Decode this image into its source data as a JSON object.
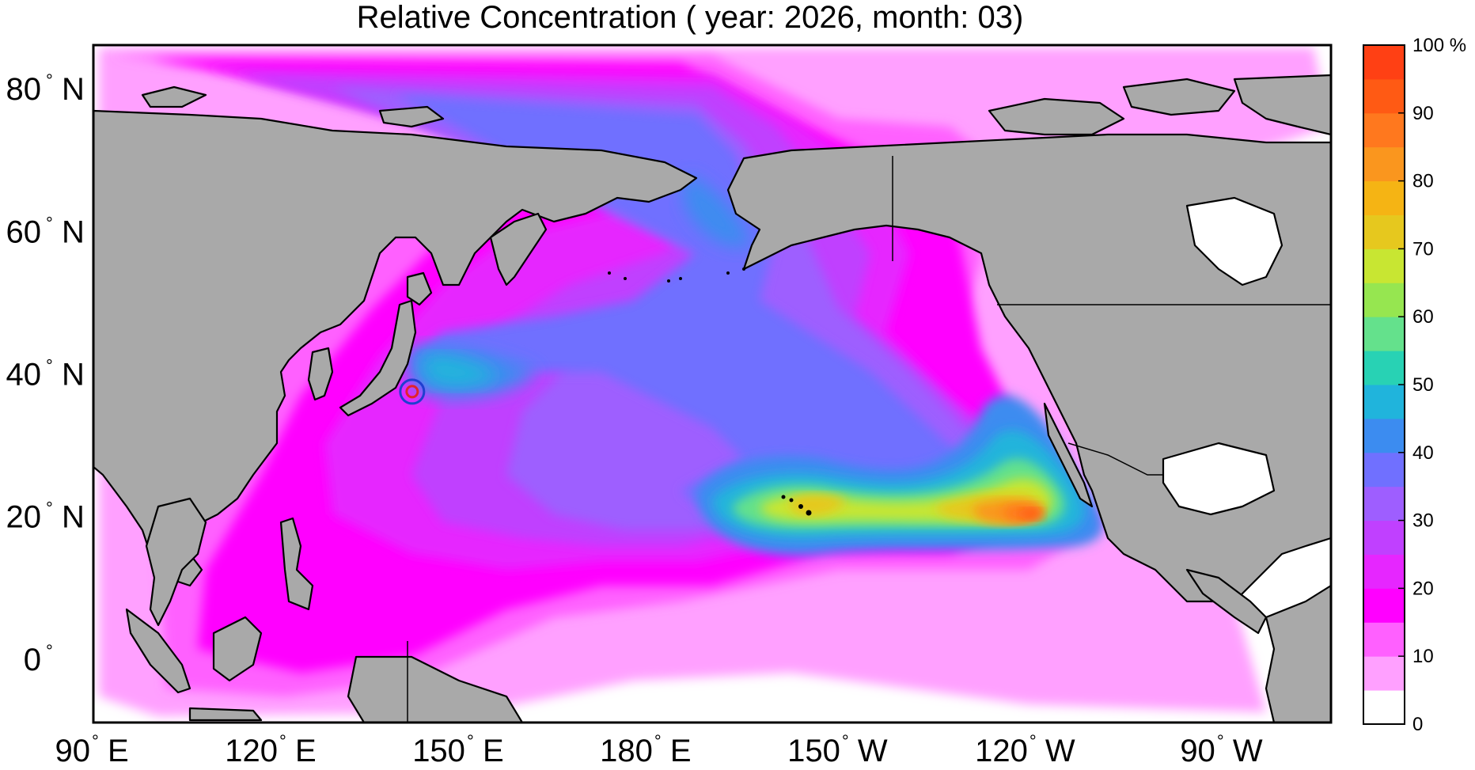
{
  "title": "Relative Concentration ( year: 2026, month: 03)",
  "map": {
    "lat_labels": [
      {
        "deg": "80",
        "hemi": "N",
        "lat": 80
      },
      {
        "deg": "60",
        "hemi": "N",
        "lat": 60
      },
      {
        "deg": "40",
        "hemi": "N",
        "lat": 40
      },
      {
        "deg": "20",
        "hemi": "N",
        "lat": 20
      },
      {
        "deg": "0",
        "hemi": "",
        "lat": 0
      }
    ],
    "lon_labels": [
      {
        "deg": "90",
        "hemi": "E",
        "lon": 90
      },
      {
        "deg": "120",
        "hemi": "E",
        "lon": 120
      },
      {
        "deg": "150",
        "hemi": "E",
        "lon": 150
      },
      {
        "deg": "180",
        "hemi": "E",
        "lon": 180
      },
      {
        "deg": "150",
        "hemi": "W",
        "lon": 210
      },
      {
        "deg": "120",
        "hemi": "W",
        "lon": 240
      },
      {
        "deg": "90",
        "hemi": "W",
        "lon": 270
      }
    ],
    "degree_symbol": "°",
    "source_marker": {
      "lon": 141,
      "lat": 37.4,
      "outer_color": "#1f3fd0",
      "inner_color": "#e0242a"
    },
    "land_color": "#a9a9a9",
    "peak_region": "southwest of Baja California"
  },
  "colorbar": {
    "colors": [
      "#ffffff",
      "#ffa0ff",
      "#ff60ff",
      "#ff00ff",
      "#e626ff",
      "#c040ff",
      "#9e5eff",
      "#7070ff",
      "#3c8cf0",
      "#20b4dc",
      "#28d2b4",
      "#64e18c",
      "#96e650",
      "#c8e632",
      "#e6c81e",
      "#f5b414",
      "#fa961e",
      "#ff781e",
      "#ff5a14",
      "#ff4014"
    ],
    "tick_labels": [
      "0",
      "10",
      "20",
      "30",
      "40",
      "50",
      "60",
      "70",
      "80",
      "90",
      "100 %"
    ]
  }
}
